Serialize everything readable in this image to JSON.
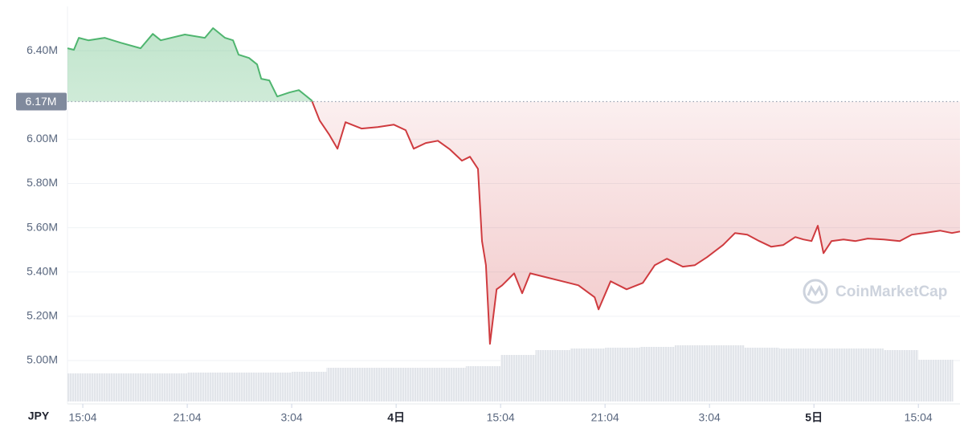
{
  "chart_data": {
    "type": "line",
    "currency": "JPY",
    "up_color": "#4fb56f",
    "down_color": "#cf3b3f",
    "baseline": {
      "value": 6170000,
      "label": "6.17M"
    },
    "watermark": "CoinMarketCap",
    "xlim": [
      -0.88,
      50.39
    ],
    "ylim": [
      4815000,
      6600000
    ],
    "grid": true,
    "xticks": [
      {
        "value": 0,
        "label": "15:04"
      },
      {
        "value": 6,
        "label": "21:04"
      },
      {
        "value": 12,
        "label": "3:04"
      },
      {
        "value": 18,
        "label": "4日",
        "bold": true
      },
      {
        "value": 24,
        "label": "15:04"
      },
      {
        "value": 30,
        "label": "21:04"
      },
      {
        "value": 36,
        "label": "3:04"
      },
      {
        "value": 42,
        "label": "5日",
        "bold": true
      },
      {
        "value": 48,
        "label": "15:04"
      }
    ],
    "yticks": [
      {
        "value": 6400000,
        "label": "6.40M"
      },
      {
        "value": 6000000,
        "label": "6.00M"
      },
      {
        "value": 5800000,
        "label": "5.80M"
      },
      {
        "value": 5600000,
        "label": "5.60M"
      },
      {
        "value": 5400000,
        "label": "5.40M"
      },
      {
        "value": 5200000,
        "label": "5.20M"
      },
      {
        "value": 5000000,
        "label": "5.00M"
      }
    ],
    "x": [
      -0.88,
      -0.51,
      -0.23,
      0.32,
      1.25,
      2.17,
      3.32,
      4.02,
      4.48,
      5.86,
      7.01,
      7.48,
      8.17,
      8.63,
      8.95,
      9.55,
      10.01,
      10.25,
      10.71,
      11.17,
      11.86,
      12.41,
      13.15,
      13.61,
      14.17,
      14.63,
      15.09,
      16.01,
      16.94,
      17.86,
      18.55,
      19.01,
      19.7,
      20.4,
      21.09,
      21.78,
      22.24,
      22.7,
      22.93,
      23.16,
      23.39,
      23.77,
      24.09,
      24.78,
      25.24,
      25.7,
      26.63,
      27.55,
      28.47,
      29.4,
      29.63,
      30.32,
      31.24,
      32.17,
      32.86,
      33.55,
      34.47,
      35.16,
      35.86,
      36.78,
      37.47,
      38.17,
      38.86,
      39.55,
      40.24,
      40.93,
      41.39,
      41.86,
      42.22,
      42.55,
      43.01,
      43.7,
      44.39,
      45.09,
      46.01,
      46.93,
      47.62,
      48.32,
      49.24,
      49.93,
      50.39
    ],
    "values": [
      6411000,
      6404000,
      6458000,
      6447000,
      6458000,
      6436000,
      6411000,
      6476000,
      6447000,
      6473000,
      6458000,
      6502000,
      6458000,
      6447000,
      6382000,
      6367000,
      6338000,
      6273000,
      6266000,
      6193000,
      6211000,
      6222000,
      6175000,
      6084000,
      6019000,
      5957000,
      6077000,
      6048000,
      6055000,
      6066000,
      6041000,
      5957000,
      5983000,
      5993000,
      5954000,
      5903000,
      5921000,
      5866000,
      5540000,
      5431000,
      5075000,
      5322000,
      5340000,
      5394000,
      5304000,
      5394000,
      5376000,
      5358000,
      5340000,
      5286000,
      5231000,
      5358000,
      5322000,
      5351000,
      5431000,
      5460000,
      5424000,
      5431000,
      5467000,
      5522000,
      5576000,
      5569000,
      5540000,
      5514000,
      5522000,
      5558000,
      5547000,
      5540000,
      5609000,
      5485000,
      5540000,
      5547000,
      5540000,
      5551000,
      5547000,
      5540000,
      5569000,
      5576000,
      5587000,
      5576000,
      5583000
    ],
    "volume": {
      "color": "#e4e7ec",
      "ylim": [
        0,
        100
      ],
      "x": [
        -1,
        1,
        3,
        5,
        7,
        9,
        11,
        13,
        15,
        17,
        19,
        21,
        23,
        25,
        27,
        29,
        31,
        33,
        35,
        37,
        39,
        41,
        43,
        45,
        47,
        49
      ],
      "values": [
        35,
        35,
        35,
        35,
        36,
        36,
        36,
        37,
        42,
        42,
        42,
        42,
        44,
        58,
        64,
        66,
        67,
        68,
        70,
        70,
        67,
        66,
        66,
        66,
        64,
        52
      ]
    }
  }
}
